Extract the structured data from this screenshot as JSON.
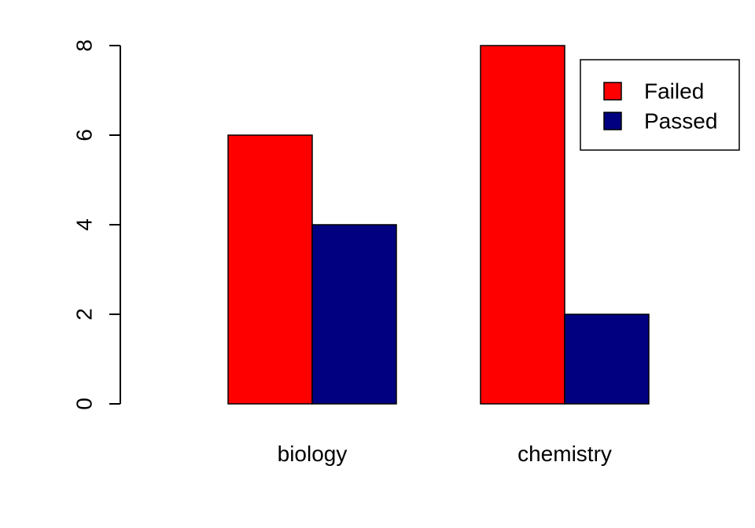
{
  "chart_data": {
    "type": "bar",
    "title": "",
    "xlabel": "",
    "ylabel": "",
    "categories": [
      "biology",
      "chemistry"
    ],
    "series": [
      {
        "name": "Failed",
        "values": [
          6,
          8
        ],
        "color": "#ff0000"
      },
      {
        "name": "Passed",
        "values": [
          4,
          2
        ],
        "color": "#000080"
      }
    ],
    "ylim": [
      0,
      8
    ],
    "yticks": [
      0,
      2,
      4,
      6,
      8
    ],
    "grouping": "side-by-side",
    "grid": false,
    "legend": {
      "position": "top-right",
      "boxed": true
    }
  }
}
